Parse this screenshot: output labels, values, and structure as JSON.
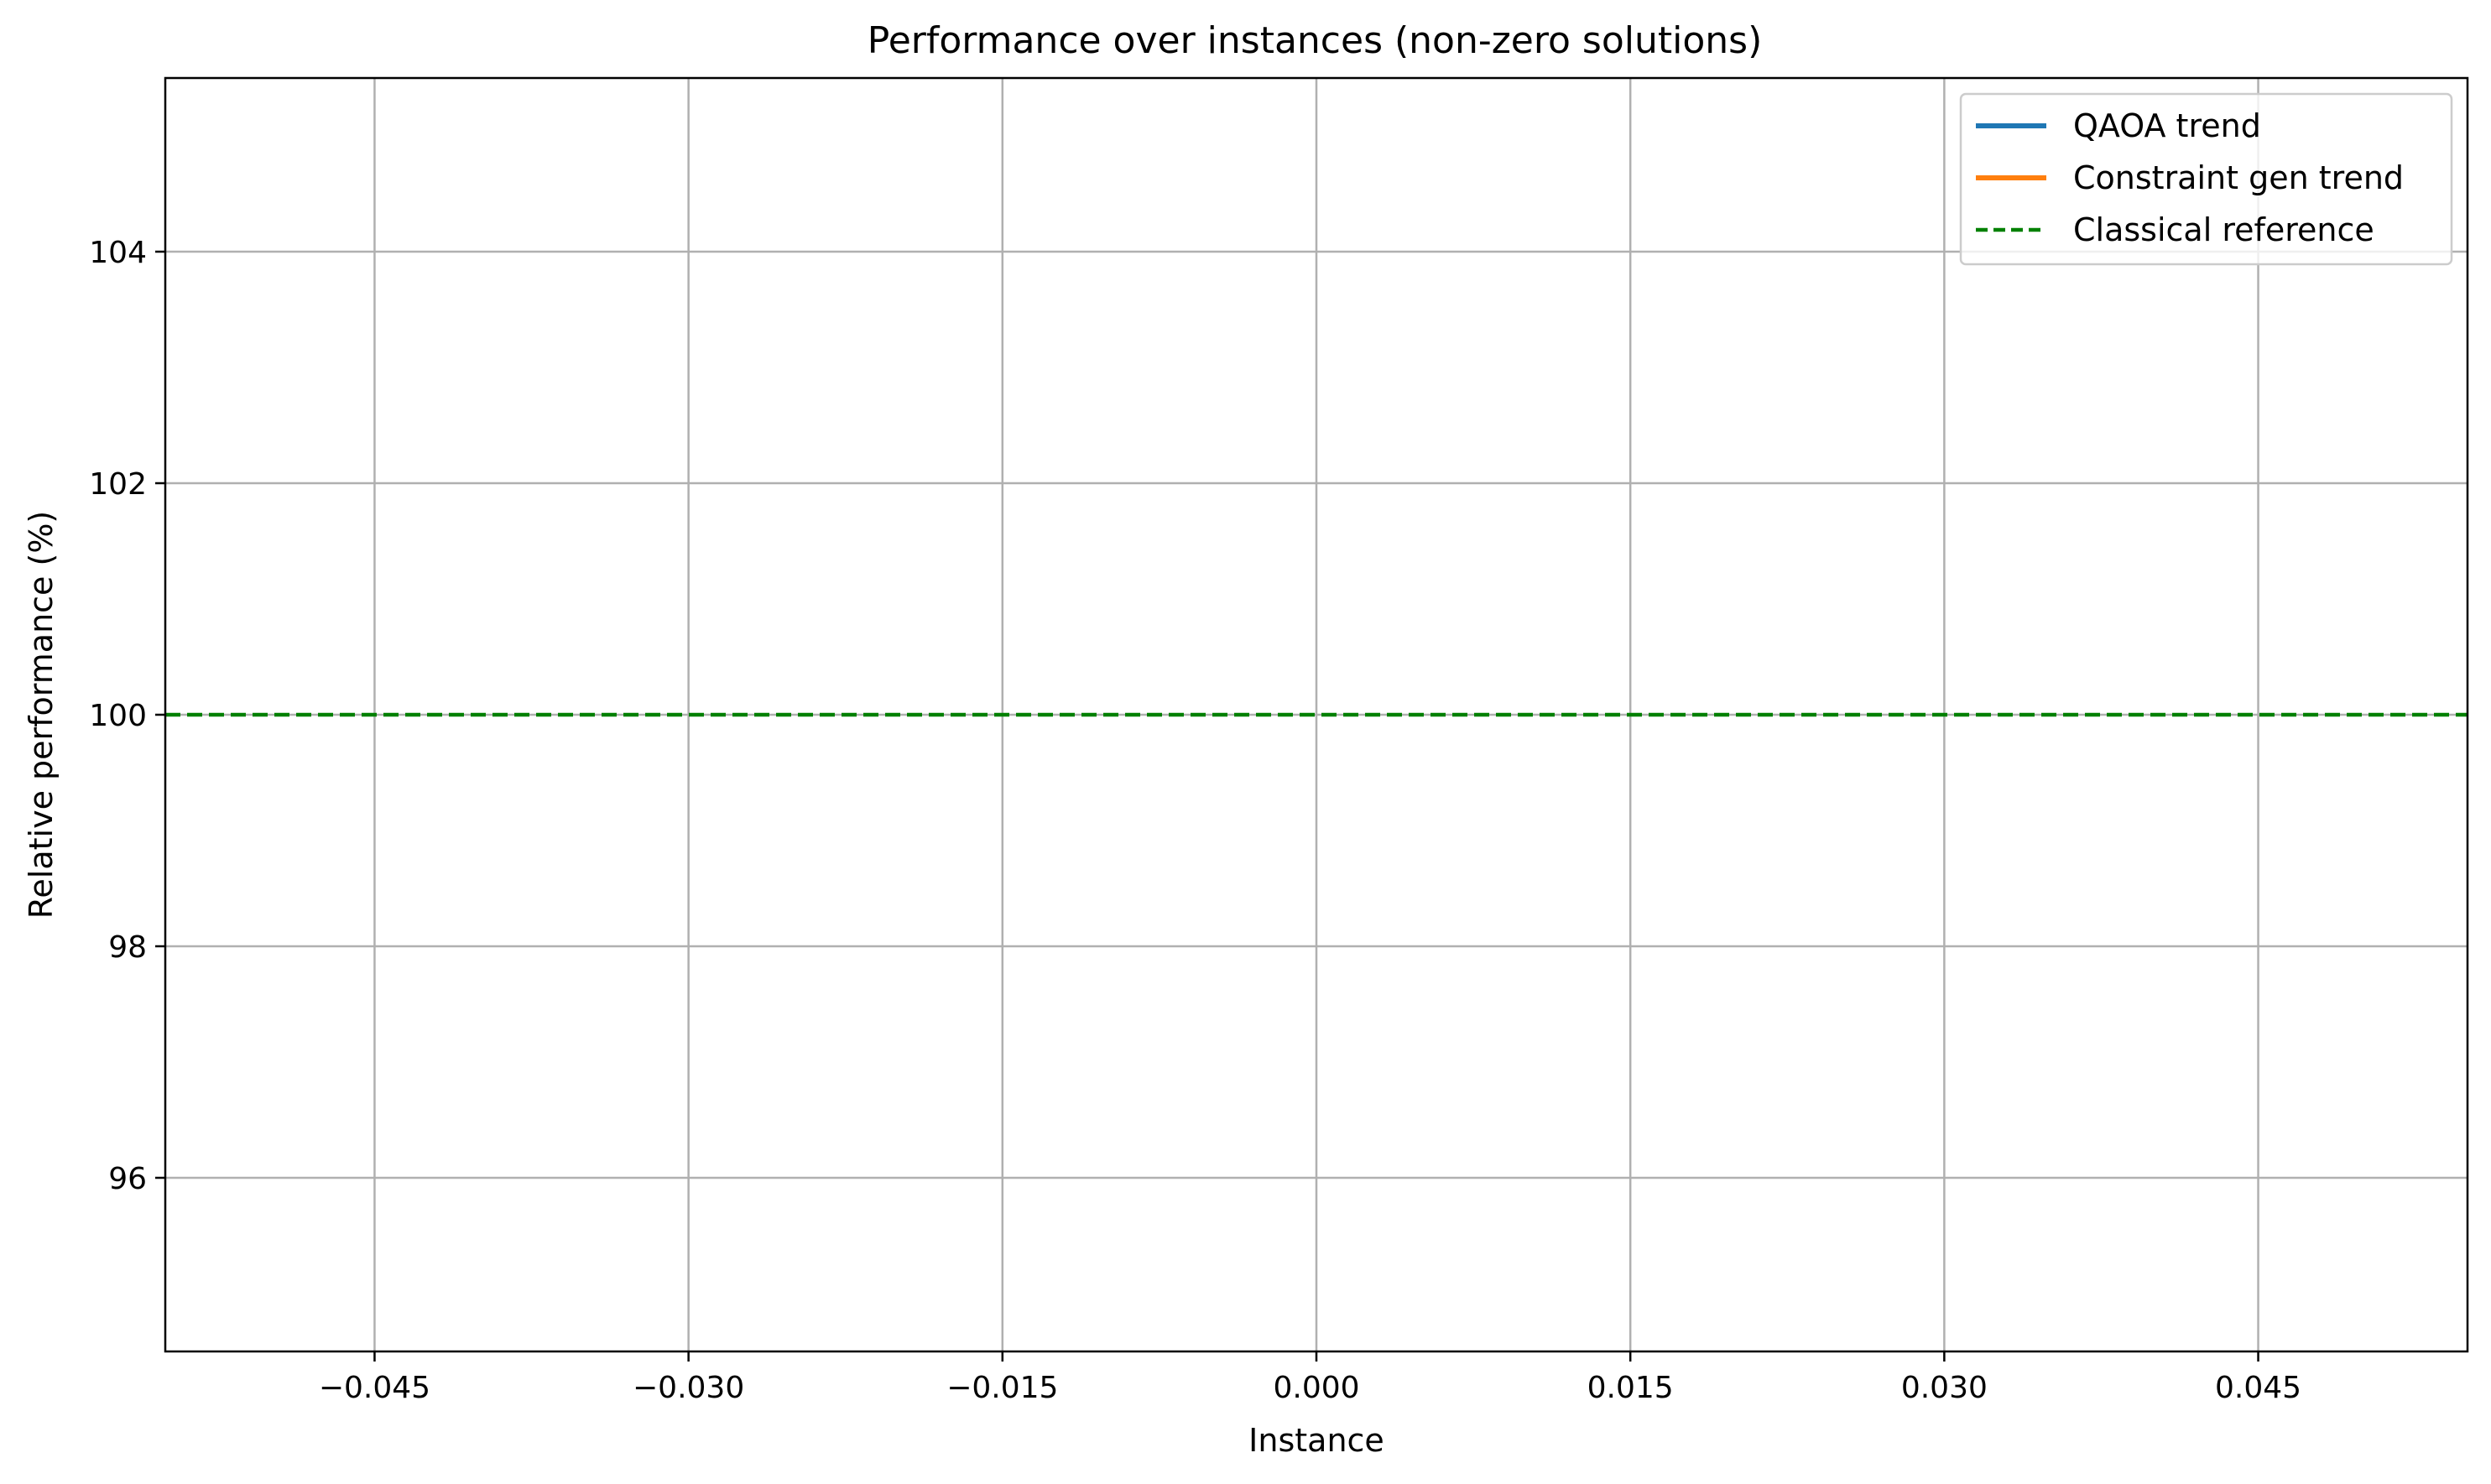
{
  "chart_data": {
    "type": "line",
    "title": "Performance over instances (non-zero solutions)",
    "xlabel": "Instance",
    "ylabel": "Relative performance (%)",
    "xlim": [
      -0.055,
      0.055
    ],
    "ylim": [
      94.5,
      105.5
    ],
    "xticks": [
      -0.045,
      -0.03,
      -0.015,
      0.0,
      0.015,
      0.03,
      0.045
    ],
    "xtick_labels": [
      "−0.045",
      "−0.030",
      "−0.015",
      "0.000",
      "0.015",
      "0.030",
      "0.045"
    ],
    "yticks": [
      96,
      98,
      100,
      102,
      104
    ],
    "ytick_labels": [
      "96",
      "98",
      "100",
      "102",
      "104"
    ],
    "grid": true,
    "legend_position": "top-right",
    "series": [
      {
        "name": "QAOA trend",
        "color": "#1f77b4",
        "style": "solid",
        "x": [],
        "y": []
      },
      {
        "name": "Constraint gen trend",
        "color": "#ff7f0e",
        "style": "solid",
        "x": [],
        "y": []
      },
      {
        "name": "Classical reference",
        "color": "#008000",
        "style": "dashed",
        "hline": 100
      }
    ]
  }
}
